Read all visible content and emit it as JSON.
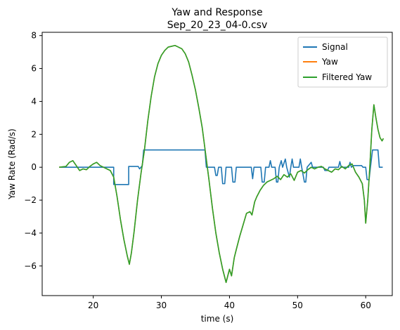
{
  "chart_data": {
    "type": "line",
    "title": "Yaw and Response",
    "subtitle": "Sep_20_23_04-0.csv",
    "xlabel": "time (s)",
    "ylabel": "Yaw Rate (Rad/s)",
    "xlim": [
      12.5,
      63.9
    ],
    "ylim": [
      -7.8,
      8.2
    ],
    "xticks": [
      20,
      30,
      40,
      50,
      60
    ],
    "yticks": [
      -6,
      -4,
      -2,
      0,
      2,
      4,
      6,
      8
    ],
    "grid": false,
    "legend_position": "top-right",
    "series": [
      {
        "name": "Signal",
        "color": "#1f77b4",
        "points": [
          [
            15.0,
            0
          ],
          [
            23.0,
            0
          ],
          [
            23.0,
            -1.05
          ],
          [
            25.2,
            -1.05
          ],
          [
            25.2,
            0.05
          ],
          [
            26.6,
            0.05
          ],
          [
            26.8,
            -0.1
          ],
          [
            27.2,
            0.1
          ],
          [
            27.4,
            1.05
          ],
          [
            36.4,
            1.05
          ],
          [
            36.6,
            0
          ],
          [
            37.8,
            0
          ],
          [
            38.0,
            -0.5
          ],
          [
            38.2,
            -0.5
          ],
          [
            38.4,
            0
          ],
          [
            38.8,
            0
          ],
          [
            39.0,
            -1.0
          ],
          [
            39.3,
            -1.0
          ],
          [
            39.5,
            0
          ],
          [
            40.3,
            0
          ],
          [
            40.5,
            -0.9
          ],
          [
            40.8,
            -0.9
          ],
          [
            41.0,
            0
          ],
          [
            43.2,
            0
          ],
          [
            43.4,
            -0.7
          ],
          [
            43.6,
            0
          ],
          [
            44.6,
            0
          ],
          [
            44.8,
            -0.9
          ],
          [
            45.1,
            -0.9
          ],
          [
            45.3,
            0
          ],
          [
            45.8,
            0
          ],
          [
            46.0,
            0.4
          ],
          [
            46.2,
            0
          ],
          [
            46.7,
            0
          ],
          [
            46.9,
            -0.9
          ],
          [
            47.1,
            -0.9
          ],
          [
            47.3,
            0
          ],
          [
            47.6,
            0.4
          ],
          [
            47.8,
            0
          ],
          [
            48.2,
            0.5
          ],
          [
            48.4,
            0
          ],
          [
            48.8,
            -0.6
          ],
          [
            49.0,
            0
          ],
          [
            49.2,
            0.5
          ],
          [
            49.4,
            0
          ],
          [
            50.2,
            0
          ],
          [
            50.4,
            0.5
          ],
          [
            50.6,
            0
          ],
          [
            51.0,
            -0.9
          ],
          [
            51.2,
            -0.9
          ],
          [
            51.4,
            0
          ],
          [
            52.0,
            0.3
          ],
          [
            52.2,
            0
          ],
          [
            53.8,
            0
          ],
          [
            54.0,
            -0.2
          ],
          [
            54.4,
            -0.2
          ],
          [
            54.6,
            0
          ],
          [
            56.0,
            0
          ],
          [
            56.2,
            0.35
          ],
          [
            56.4,
            0
          ],
          [
            57.5,
            0
          ],
          [
            57.7,
            0.3
          ],
          [
            57.9,
            0
          ],
          [
            58.2,
            0.1
          ],
          [
            59.4,
            0.1
          ],
          [
            59.6,
            0
          ],
          [
            60.0,
            0
          ],
          [
            60.2,
            -0.75
          ],
          [
            60.5,
            -0.75
          ],
          [
            60.7,
            0.0
          ],
          [
            61.0,
            1.05
          ],
          [
            61.8,
            1.05
          ],
          [
            62.0,
            0
          ],
          [
            62.5,
            0
          ]
        ]
      },
      {
        "name": "Yaw",
        "color": "#ff7f0e",
        "points": [
          [
            15.0,
            0
          ],
          [
            16.0,
            0.05
          ],
          [
            16.5,
            0.3
          ],
          [
            17.0,
            0.4
          ],
          [
            17.5,
            0.1
          ],
          [
            18.0,
            -0.2
          ],
          [
            18.5,
            -0.1
          ],
          [
            19.0,
            -0.15
          ],
          [
            19.5,
            0.05
          ],
          [
            20.0,
            0.2
          ],
          [
            20.5,
            0.3
          ],
          [
            21.0,
            0.1
          ],
          [
            21.5,
            0.0
          ],
          [
            22.0,
            -0.1
          ],
          [
            22.5,
            -0.2
          ],
          [
            23.0,
            -0.6
          ],
          [
            23.5,
            -1.8
          ],
          [
            24.0,
            -3.2
          ],
          [
            24.5,
            -4.4
          ],
          [
            25.0,
            -5.4
          ],
          [
            25.3,
            -5.9
          ],
          [
            25.6,
            -5.2
          ],
          [
            26.0,
            -3.9
          ],
          [
            26.5,
            -2.0
          ],
          [
            27.0,
            -0.4
          ],
          [
            27.5,
            1.0
          ],
          [
            28.0,
            2.8
          ],
          [
            28.5,
            4.3
          ],
          [
            29.0,
            5.5
          ],
          [
            29.5,
            6.3
          ],
          [
            30.0,
            6.8
          ],
          [
            30.5,
            7.1
          ],
          [
            31.0,
            7.3
          ],
          [
            31.5,
            7.35
          ],
          [
            32.0,
            7.4
          ],
          [
            32.5,
            7.3
          ],
          [
            33.0,
            7.2
          ],
          [
            33.5,
            6.9
          ],
          [
            34.0,
            6.4
          ],
          [
            34.5,
            5.6
          ],
          [
            35.0,
            4.7
          ],
          [
            35.5,
            3.6
          ],
          [
            36.0,
            2.4
          ],
          [
            36.5,
            0.8
          ],
          [
            37.0,
            -0.8
          ],
          [
            37.5,
            -2.5
          ],
          [
            38.0,
            -4.0
          ],
          [
            38.5,
            -5.2
          ],
          [
            39.0,
            -6.2
          ],
          [
            39.5,
            -7.0
          ],
          [
            40.0,
            -6.2
          ],
          [
            40.3,
            -6.6
          ],
          [
            40.7,
            -5.5
          ],
          [
            41.0,
            -5.0
          ],
          [
            41.5,
            -4.2
          ],
          [
            42.0,
            -3.5
          ],
          [
            42.5,
            -2.8
          ],
          [
            43.0,
            -2.7
          ],
          [
            43.3,
            -2.9
          ],
          [
            43.7,
            -2.1
          ],
          [
            44.0,
            -1.8
          ],
          [
            44.5,
            -1.4
          ],
          [
            45.0,
            -1.1
          ],
          [
            45.5,
            -0.9
          ],
          [
            46.0,
            -0.8
          ],
          [
            46.5,
            -0.7
          ],
          [
            47.0,
            -0.55
          ],
          [
            47.5,
            -0.75
          ],
          [
            48.0,
            -0.45
          ],
          [
            48.5,
            -0.6
          ],
          [
            49.0,
            -0.4
          ],
          [
            49.5,
            -0.8
          ],
          [
            50.0,
            -0.3
          ],
          [
            50.5,
            -0.2
          ],
          [
            51.0,
            -0.35
          ],
          [
            51.5,
            -0.15
          ],
          [
            52.0,
            0.0
          ],
          [
            52.5,
            -0.1
          ],
          [
            53.0,
            0.0
          ],
          [
            53.5,
            0.05
          ],
          [
            54.0,
            -0.1
          ],
          [
            54.5,
            -0.2
          ],
          [
            55.0,
            -0.3
          ],
          [
            55.5,
            -0.1
          ],
          [
            56.0,
            -0.15
          ],
          [
            56.5,
            0.05
          ],
          [
            57.0,
            -0.1
          ],
          [
            57.5,
            0.1
          ],
          [
            58.0,
            0.2
          ],
          [
            58.5,
            -0.3
          ],
          [
            59.0,
            -0.6
          ],
          [
            59.5,
            -1.0
          ],
          [
            59.8,
            -2.0
          ],
          [
            60.0,
            -3.4
          ],
          [
            60.3,
            -2.0
          ],
          [
            60.6,
            0.0
          ],
          [
            60.9,
            2.3
          ],
          [
            61.2,
            3.8
          ],
          [
            61.5,
            3.0
          ],
          [
            61.8,
            2.3
          ],
          [
            62.1,
            1.8
          ],
          [
            62.4,
            1.6
          ],
          [
            62.6,
            1.75
          ]
        ]
      },
      {
        "name": "Filtered Yaw",
        "color": "#2ca02c",
        "points": [
          [
            15.0,
            0
          ],
          [
            16.0,
            0.05
          ],
          [
            16.5,
            0.3
          ],
          [
            17.0,
            0.4
          ],
          [
            17.5,
            0.1
          ],
          [
            18.0,
            -0.2
          ],
          [
            18.5,
            -0.1
          ],
          [
            19.0,
            -0.15
          ],
          [
            19.5,
            0.05
          ],
          [
            20.0,
            0.2
          ],
          [
            20.5,
            0.3
          ],
          [
            21.0,
            0.1
          ],
          [
            21.5,
            0.0
          ],
          [
            22.0,
            -0.1
          ],
          [
            22.5,
            -0.2
          ],
          [
            23.0,
            -0.6
          ],
          [
            23.5,
            -1.8
          ],
          [
            24.0,
            -3.2
          ],
          [
            24.5,
            -4.4
          ],
          [
            25.0,
            -5.4
          ],
          [
            25.3,
            -5.9
          ],
          [
            25.6,
            -5.2
          ],
          [
            26.0,
            -3.9
          ],
          [
            26.5,
            -2.0
          ],
          [
            27.0,
            -0.4
          ],
          [
            27.5,
            1.0
          ],
          [
            28.0,
            2.8
          ],
          [
            28.5,
            4.3
          ],
          [
            29.0,
            5.5
          ],
          [
            29.5,
            6.3
          ],
          [
            30.0,
            6.8
          ],
          [
            30.5,
            7.1
          ],
          [
            31.0,
            7.3
          ],
          [
            31.5,
            7.35
          ],
          [
            32.0,
            7.4
          ],
          [
            32.5,
            7.3
          ],
          [
            33.0,
            7.2
          ],
          [
            33.5,
            6.9
          ],
          [
            34.0,
            6.4
          ],
          [
            34.5,
            5.6
          ],
          [
            35.0,
            4.7
          ],
          [
            35.5,
            3.6
          ],
          [
            36.0,
            2.4
          ],
          [
            36.5,
            0.8
          ],
          [
            37.0,
            -0.8
          ],
          [
            37.5,
            -2.5
          ],
          [
            38.0,
            -4.0
          ],
          [
            38.5,
            -5.2
          ],
          [
            39.0,
            -6.2
          ],
          [
            39.5,
            -7.0
          ],
          [
            40.0,
            -6.2
          ],
          [
            40.3,
            -6.6
          ],
          [
            40.7,
            -5.5
          ],
          [
            41.0,
            -5.0
          ],
          [
            41.5,
            -4.2
          ],
          [
            42.0,
            -3.5
          ],
          [
            42.5,
            -2.8
          ],
          [
            43.0,
            -2.7
          ],
          [
            43.3,
            -2.9
          ],
          [
            43.7,
            -2.1
          ],
          [
            44.0,
            -1.8
          ],
          [
            44.5,
            -1.4
          ],
          [
            45.0,
            -1.1
          ],
          [
            45.5,
            -0.9
          ],
          [
            46.0,
            -0.8
          ],
          [
            46.5,
            -0.7
          ],
          [
            47.0,
            -0.55
          ],
          [
            47.5,
            -0.75
          ],
          [
            48.0,
            -0.45
          ],
          [
            48.5,
            -0.6
          ],
          [
            49.0,
            -0.4
          ],
          [
            49.5,
            -0.8
          ],
          [
            50.0,
            -0.3
          ],
          [
            50.5,
            -0.2
          ],
          [
            51.0,
            -0.35
          ],
          [
            51.5,
            -0.15
          ],
          [
            52.0,
            0.0
          ],
          [
            52.5,
            -0.1
          ],
          [
            53.0,
            0.0
          ],
          [
            53.5,
            0.05
          ],
          [
            54.0,
            -0.1
          ],
          [
            54.5,
            -0.2
          ],
          [
            55.0,
            -0.3
          ],
          [
            55.5,
            -0.1
          ],
          [
            56.0,
            -0.15
          ],
          [
            56.5,
            0.05
          ],
          [
            57.0,
            -0.1
          ],
          [
            57.5,
            0.1
          ],
          [
            58.0,
            0.2
          ],
          [
            58.5,
            -0.3
          ],
          [
            59.0,
            -0.6
          ],
          [
            59.5,
            -1.0
          ],
          [
            59.8,
            -2.0
          ],
          [
            60.0,
            -3.4
          ],
          [
            60.3,
            -2.0
          ],
          [
            60.6,
            0.0
          ],
          [
            60.9,
            2.3
          ],
          [
            61.2,
            3.8
          ],
          [
            61.5,
            3.0
          ],
          [
            61.8,
            2.3
          ],
          [
            62.1,
            1.8
          ],
          [
            62.4,
            1.6
          ],
          [
            62.6,
            1.75
          ]
        ]
      }
    ]
  }
}
